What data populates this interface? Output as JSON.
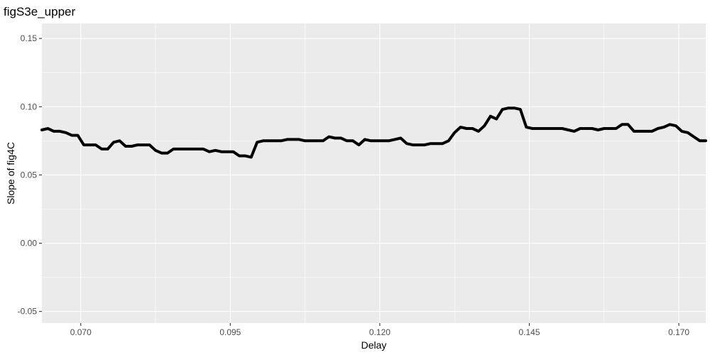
{
  "chart_data": {
    "type": "line",
    "title": "figS3e_upper",
    "xlabel": "Delay",
    "ylabel": "Slope of fig4C",
    "xlim": [
      0.0635,
      0.1745
    ],
    "ylim": [
      -0.0585,
      0.161
    ],
    "x_ticks": [
      0.07,
      0.095,
      0.12,
      0.145,
      0.17
    ],
    "x_tick_labels": [
      "0.070",
      "0.095",
      "0.120",
      "0.145",
      "0.170"
    ],
    "y_ticks": [
      -0.05,
      0.0,
      0.05,
      0.1,
      0.15
    ],
    "y_tick_labels": [
      "-0.05",
      "0.00",
      "0.05",
      "0.10",
      "0.15"
    ],
    "grid": true,
    "legend": "none",
    "series": [
      {
        "color": "#000000",
        "x": [
          0.0635,
          0.0645,
          0.0655,
          0.0665,
          0.0675,
          0.0685,
          0.0695,
          0.0705,
          0.0715,
          0.0725,
          0.0735,
          0.0745,
          0.0755,
          0.0765,
          0.0775,
          0.0785,
          0.0795,
          0.0805,
          0.0815,
          0.0825,
          0.0835,
          0.0845,
          0.0855,
          0.0865,
          0.0875,
          0.0885,
          0.0895,
          0.0905,
          0.0915,
          0.0925,
          0.0935,
          0.0945,
          0.0955,
          0.0965,
          0.0975,
          0.0985,
          0.0995,
          0.1005,
          0.1015,
          0.1025,
          0.1035,
          0.1045,
          0.1055,
          0.1065,
          0.1075,
          0.1085,
          0.1095,
          0.1105,
          0.1115,
          0.1125,
          0.1135,
          0.1145,
          0.1155,
          0.1165,
          0.1175,
          0.1185,
          0.1195,
          0.1205,
          0.1215,
          0.1225,
          0.1235,
          0.1245,
          0.1255,
          0.1265,
          0.1275,
          0.1285,
          0.1295,
          0.1305,
          0.1315,
          0.1325,
          0.1335,
          0.1345,
          0.1355,
          0.1365,
          0.1375,
          0.1385,
          0.1395,
          0.1405,
          0.1415,
          0.1425,
          0.1435,
          0.1445,
          0.1455,
          0.1465,
          0.1475,
          0.1485,
          0.1495,
          0.1505,
          0.1515,
          0.1525,
          0.1535,
          0.1545,
          0.1555,
          0.1565,
          0.1575,
          0.1585,
          0.1595,
          0.1605,
          0.1615,
          0.1625,
          0.1635,
          0.1645,
          0.1655,
          0.1665,
          0.1675,
          0.1685,
          0.1695,
          0.1705,
          0.1715,
          0.1725,
          0.1735,
          0.1745
        ],
        "y": [
          0.083,
          0.084,
          0.082,
          0.082,
          0.081,
          0.079,
          0.079,
          0.072,
          0.072,
          0.072,
          0.069,
          0.069,
          0.074,
          0.075,
          0.071,
          0.071,
          0.072,
          0.072,
          0.072,
          0.068,
          0.066,
          0.066,
          0.069,
          0.069,
          0.069,
          0.069,
          0.069,
          0.069,
          0.067,
          0.068,
          0.067,
          0.067,
          0.067,
          0.064,
          0.064,
          0.063,
          0.074,
          0.075,
          0.075,
          0.075,
          0.075,
          0.076,
          0.076,
          0.076,
          0.075,
          0.075,
          0.075,
          0.075,
          0.078,
          0.077,
          0.077,
          0.075,
          0.075,
          0.072,
          0.076,
          0.075,
          0.075,
          0.075,
          0.075,
          0.076,
          0.077,
          0.073,
          0.072,
          0.072,
          0.072,
          0.073,
          0.073,
          0.073,
          0.075,
          0.081,
          0.085,
          0.084,
          0.084,
          0.082,
          0.086,
          0.093,
          0.091,
          0.098,
          0.099,
          0.099,
          0.098,
          0.085,
          0.084,
          0.084,
          0.084,
          0.084,
          0.084,
          0.084,
          0.083,
          0.082,
          0.084,
          0.084,
          0.084,
          0.083,
          0.084,
          0.084,
          0.084,
          0.087,
          0.087,
          0.082,
          0.082,
          0.082,
          0.082,
          0.084,
          0.085,
          0.087,
          0.086,
          0.082,
          0.081,
          0.078,
          0.075,
          0.075
        ]
      }
    ]
  }
}
